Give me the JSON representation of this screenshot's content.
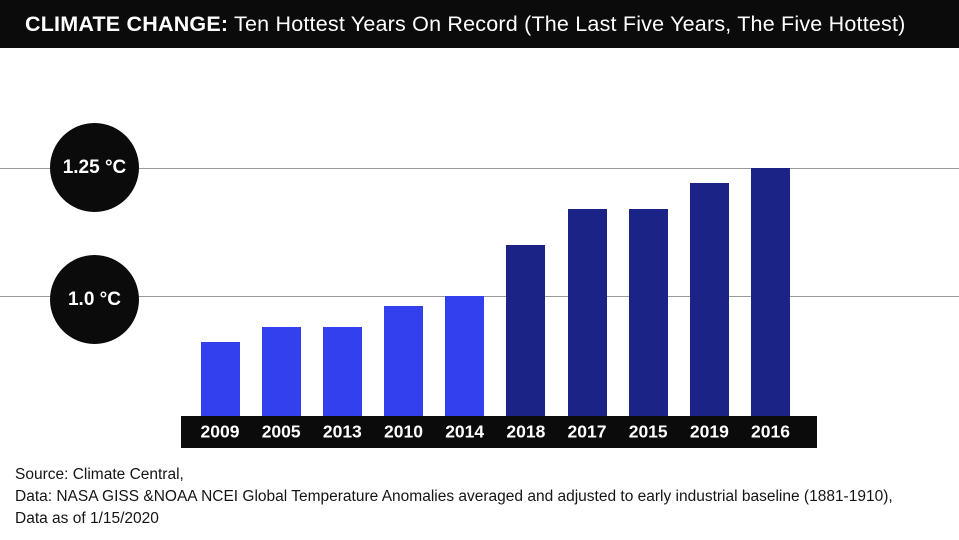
{
  "header": {
    "title_bold": "CLIMATE CHANGE:",
    "title_rest": " Ten Hottest Years On Record (The Last Five Years, The Five Hottest)"
  },
  "chart_data": {
    "type": "bar",
    "title": "CLIMATE CHANGE: Ten Hottest Years On Record (The Last Five Years, The Five Hottest)",
    "categories": [
      "2009",
      "2005",
      "2013",
      "2010",
      "2014",
      "2018",
      "2017",
      "2015",
      "2019",
      "2016"
    ],
    "values": [
      0.91,
      0.94,
      0.94,
      0.98,
      1.0,
      1.1,
      1.17,
      1.17,
      1.22,
      1.25
    ],
    "unit": "°C",
    "bar_colors": [
      "#3340ee",
      "#3340ee",
      "#3340ee",
      "#3340ee",
      "#3340ee",
      "#1b2386",
      "#1b2386",
      "#1b2386",
      "#1b2386",
      "#1b2386"
    ],
    "color_groups": {
      "older_five_color": "#3340ee",
      "last_five_years_color": "#1b2386"
    },
    "gridline_labels": [
      "1.25 °C",
      "1.0 °C"
    ],
    "gridline_values": [
      1.25,
      1.0
    ],
    "grid": "horizontal lines at 1.0 and 1.25 only",
    "legend_position": "none",
    "ylim_visible": [
      0.77,
      1.27
    ]
  },
  "footer": {
    "lines": [
      "Source: Climate Central,",
      "Data: NASA GISS &NOAA NCEI Global Temperature Anomalies averaged and adjusted to early industrial baseline (1881-1910),",
      "Data as of 1/15/2020"
    ]
  }
}
